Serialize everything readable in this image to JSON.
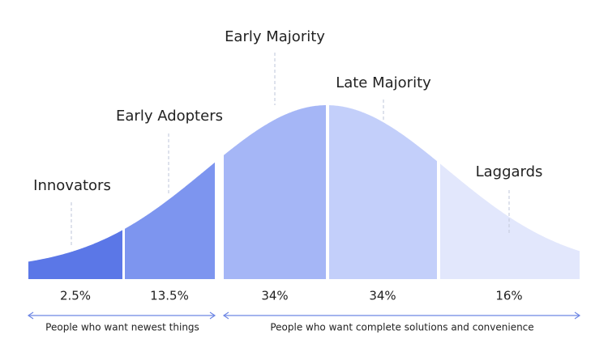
{
  "segments": [
    {
      "name": "Innovators",
      "share": "2.5%"
    },
    {
      "name": "Early Adopters",
      "share": "13.5%"
    },
    {
      "name": "Early Majority",
      "share": "34%"
    },
    {
      "name": "Late Majority",
      "share": "34%"
    },
    {
      "name": "Laggards",
      "share": "16%"
    }
  ],
  "groups": [
    {
      "label": "People who want newest things"
    },
    {
      "label": "People who want complete solutions and convenience"
    }
  ]
}
